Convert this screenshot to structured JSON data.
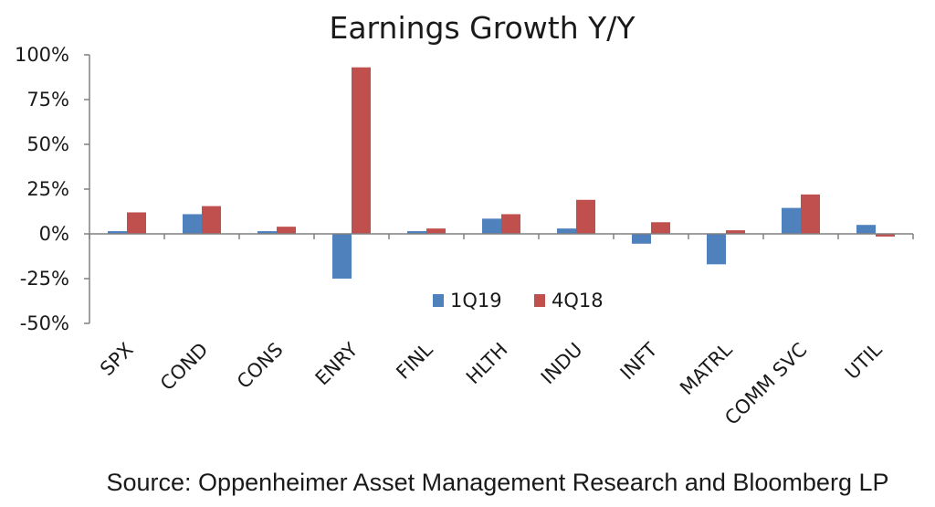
{
  "chart_data": {
    "type": "bar",
    "title": "Earnings Growth Y/Y",
    "source": "Source: Oppenheimer Asset Management Research and Bloomberg LP",
    "categories": [
      "SPX",
      "COND",
      "CONS",
      "ENRY",
      "FINL",
      "HLTH",
      "INDU",
      "INFT",
      "MATRL",
      "COMM SVC",
      "UTIL"
    ],
    "series": [
      {
        "name": "1Q19",
        "color": "#4f81bd",
        "values": [
          1.5,
          11,
          1.5,
          -25,
          1.5,
          8.5,
          3,
          -5.5,
          -17,
          14.5,
          5
        ]
      },
      {
        "name": "4Q18",
        "color": "#c0504d",
        "values": [
          12,
          15.5,
          4,
          93,
          3,
          11,
          19,
          6.5,
          2,
          22,
          -1.5
        ]
      }
    ],
    "ylim": [
      -50,
      100
    ],
    "yticks": [
      100,
      75,
      50,
      25,
      0,
      -25,
      -50
    ],
    "ytick_labels": [
      "100%",
      "75%",
      "50%",
      "25%",
      "0%",
      "-25%",
      "-50%"
    ],
    "xlabel": "",
    "ylabel": "",
    "grid": false,
    "legend_position": "inside-bottom-center"
  }
}
